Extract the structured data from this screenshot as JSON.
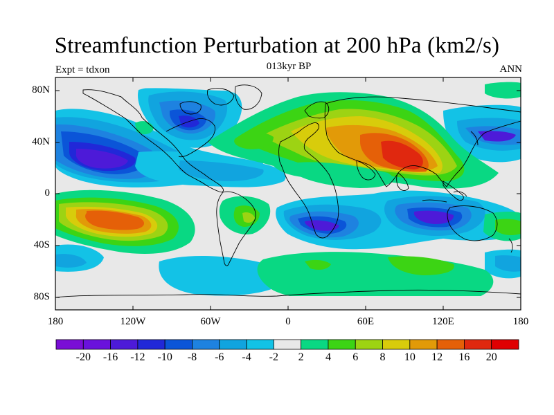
{
  "title": "Streamfunction Perturbation at 200 hPa (km2/s)",
  "subtitle_center": "013kyr BP",
  "subtitle_left": "Expt = tdxon",
  "subtitle_right": "ANN",
  "lat_labels": [
    "80N",
    "40N",
    "0",
    "40S",
    "80S"
  ],
  "lon_labels": [
    "180",
    "120W",
    "60W",
    "0",
    "60E",
    "120E",
    "180"
  ],
  "colorbar": {
    "labels": [
      "-20",
      "-16",
      "-12",
      "-10",
      "-8",
      "-6",
      "-4",
      "-2",
      "2",
      "4",
      "6",
      "8",
      "10",
      "12",
      "16",
      "20"
    ],
    "colors": [
      "#7a0ed6",
      "#6a12dc",
      "#4d1ad8",
      "#2128d8",
      "#0b55d8",
      "#1e82e0",
      "#11a4df",
      "#13c2e6",
      "#e8e8e8",
      "#09d883",
      "#3cd414",
      "#9dd313",
      "#d8cc0b",
      "#e29a08",
      "#e56008",
      "#e0280f",
      "#e00002"
    ]
  }
}
